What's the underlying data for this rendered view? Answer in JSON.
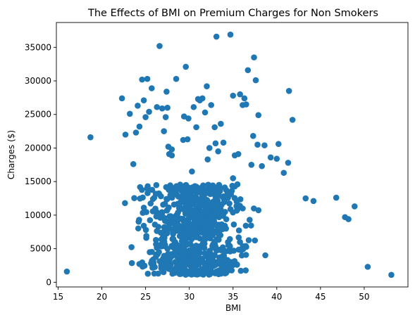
{
  "chart_data": {
    "type": "scatter",
    "title": "The Effects of BMI on Premium Charges for Non Smokers",
    "xlabel": "BMI",
    "ylabel": "Charges ($)",
    "xlim": [
      14.8,
      55.0
    ],
    "ylim": [
      -700,
      38700
    ],
    "xticks": [
      15,
      20,
      25,
      30,
      35,
      40,
      45,
      50
    ],
    "yticks": [
      0,
      5000,
      10000,
      15000,
      20000,
      25000,
      30000,
      35000
    ],
    "grid": false,
    "legend": "none",
    "marker_color": "#1f77b4",
    "points_high": [
      [
        18.7,
        21600
      ],
      [
        22.3,
        27400
      ],
      [
        22.7,
        22000
      ],
      [
        23.2,
        25100
      ],
      [
        23.6,
        17600
      ],
      [
        23.9,
        22300
      ],
      [
        24.1,
        26300
      ],
      [
        24.3,
        23200
      ],
      [
        24.6,
        30200
      ],
      [
        24.8,
        27100
      ],
      [
        25.0,
        24600
      ],
      [
        25.2,
        30300
      ],
      [
        25.4,
        25400
      ],
      [
        25.7,
        28900
      ],
      [
        26.3,
        26100
      ],
      [
        26.6,
        35200
      ],
      [
        26.9,
        25900
      ],
      [
        27.1,
        22500
      ],
      [
        27.3,
        24600
      ],
      [
        27.4,
        28400
      ],
      [
        27.5,
        26000
      ],
      [
        27.6,
        20200
      ],
      [
        27.7,
        19100
      ],
      [
        28.0,
        19800
      ],
      [
        28.0,
        18900
      ],
      [
        28.5,
        30300
      ],
      [
        29.3,
        21200
      ],
      [
        29.4,
        24700
      ],
      [
        29.6,
        32100
      ],
      [
        29.8,
        21300
      ],
      [
        29.9,
        24400
      ],
      [
        30.3,
        16500
      ],
      [
        30.5,
        26100
      ],
      [
        30.8,
        23100
      ],
      [
        31.0,
        27300
      ],
      [
        31.2,
        27100
      ],
      [
        31.5,
        27400
      ],
      [
        31.8,
        25300
      ],
      [
        32.0,
        29200
      ],
      [
        32.1,
        18300
      ],
      [
        32.3,
        20000
      ],
      [
        32.5,
        26400
      ],
      [
        32.9,
        23100
      ],
      [
        33.0,
        20700
      ],
      [
        33.1,
        36600
      ],
      [
        33.3,
        19500
      ],
      [
        33.4,
        14500
      ],
      [
        33.6,
        23600
      ],
      [
        33.9,
        20800
      ],
      [
        34.0,
        12800
      ],
      [
        34.7,
        36900
      ],
      [
        35.0,
        27800
      ],
      [
        35.2,
        18900
      ],
      [
        35.6,
        19100
      ],
      [
        35.8,
        28000
      ],
      [
        36.1,
        26400
      ],
      [
        36.3,
        27400
      ],
      [
        36.5,
        26500
      ],
      [
        36.7,
        31600
      ],
      [
        37.1,
        17500
      ],
      [
        37.3,
        21800
      ],
      [
        37.4,
        33500
      ],
      [
        37.6,
        30100
      ],
      [
        37.8,
        20500
      ],
      [
        37.9,
        24900
      ],
      [
        38.3,
        17300
      ],
      [
        38.6,
        20400
      ],
      [
        39.3,
        18600
      ],
      [
        40.0,
        18400
      ],
      [
        40.2,
        20600
      ],
      [
        40.8,
        16300
      ],
      [
        41.3,
        17800
      ],
      [
        41.4,
        28500
      ],
      [
        41.8,
        24200
      ],
      [
        35.0,
        15500
      ]
    ],
    "points_high_count": 75,
    "bulk_count": 780,
    "bulk_seed": 12345,
    "bulk_x_range": [
      16.0,
      53.1
    ],
    "bulk_y_range": [
      1100,
      15000
    ],
    "outliers": [
      [
        16.0,
        1600
      ],
      [
        50.4,
        2300
      ],
      [
        53.1,
        1100
      ],
      [
        48.9,
        11300
      ],
      [
        47.8,
        9700
      ],
      [
        48.2,
        9400
      ],
      [
        46.8,
        12600
      ],
      [
        44.2,
        12100
      ],
      [
        43.3,
        12500
      ]
    ]
  }
}
